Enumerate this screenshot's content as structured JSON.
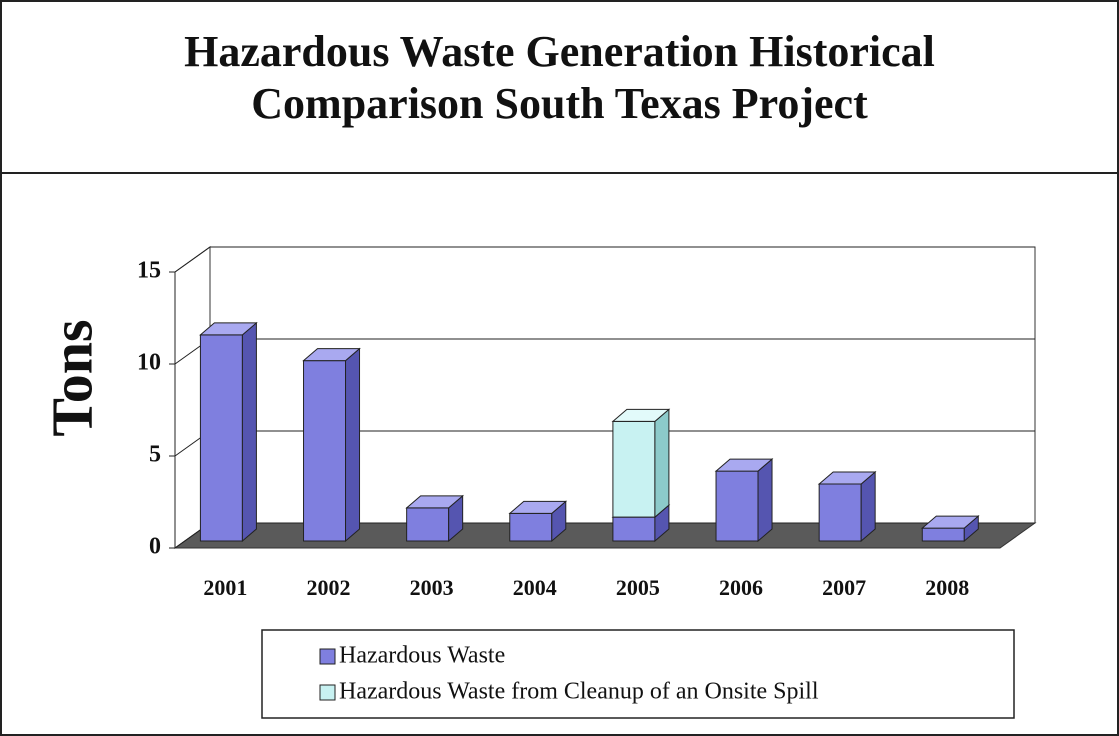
{
  "chart_data": {
    "type": "bar",
    "stacked": true,
    "three_d": true,
    "title": "Hazardous Waste Generation Historical Comparison South Texas Project",
    "y_label": "Tons",
    "categories": [
      "2001",
      "2002",
      "2003",
      "2004",
      "2005",
      "2006",
      "2007",
      "2008"
    ],
    "series": [
      {
        "name": "Hazardous Waste",
        "color": "#7f7fdf",
        "values": [
          11.2,
          9.8,
          1.8,
          1.5,
          1.3,
          3.8,
          3.1,
          0.7
        ]
      },
      {
        "name": "Hazardous Waste from Cleanup of an Onsite Spill",
        "color": "#c8f2f2",
        "values": [
          0,
          0,
          0,
          0,
          5.2,
          0,
          0,
          0
        ]
      }
    ],
    "ylim": [
      0,
      15
    ],
    "yticks": [
      0,
      5,
      10,
      15
    ],
    "grid": true,
    "legend": "bottom"
  }
}
